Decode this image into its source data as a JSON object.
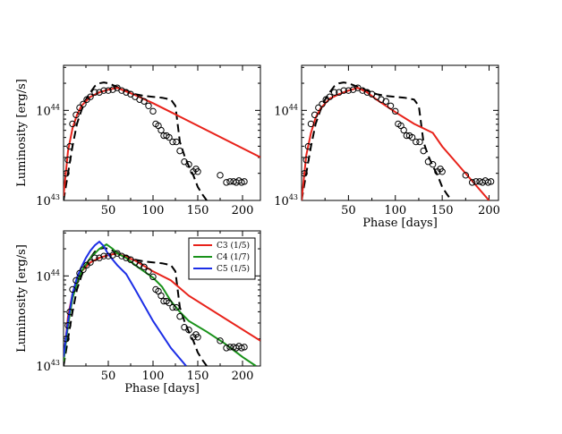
{
  "chart_data": [
    {
      "type": "line",
      "title": "",
      "xlabel": "",
      "ylabel": "Luminosity [erg/s]",
      "xlim": [
        0,
        220
      ],
      "ylim_log10": [
        43,
        44.5
      ],
      "yscale": "log",
      "xticks": [
        50,
        100,
        150,
        200
      ],
      "yticks": [
        {
          "base": "10",
          "exp": "43",
          "value": 43
        },
        {
          "base": "10",
          "exp": "44",
          "value": 44
        }
      ],
      "legend": [],
      "observed": {
        "name": "observed",
        "x": [
          3,
          5,
          7,
          10,
          14,
          18,
          22,
          26,
          30,
          35,
          40,
          45,
          50,
          55,
          60,
          65,
          70,
          75,
          80,
          85,
          90,
          95,
          100,
          103,
          106,
          109,
          112,
          115,
          118,
          122,
          126,
          130,
          135,
          140,
          145,
          148,
          150,
          175,
          182,
          186,
          190,
          193,
          196,
          199,
          202
        ],
        "y": [
          43.3,
          43.45,
          43.6,
          43.85,
          43.95,
          44.03,
          44.07,
          44.12,
          44.15,
          44.2,
          44.2,
          44.22,
          44.22,
          44.23,
          44.25,
          44.22,
          44.2,
          44.18,
          44.15,
          44.12,
          44.1,
          44.05,
          43.99,
          43.85,
          43.83,
          43.78,
          43.72,
          43.72,
          43.7,
          43.65,
          43.65,
          43.55,
          43.43,
          43.4,
          43.32,
          43.35,
          43.32,
          43.28,
          43.2,
          43.21,
          43.21,
          43.2,
          43.22,
          43.2,
          43.21
        ]
      },
      "series": [
        {
          "name": "model (dashed)",
          "color": "#000000",
          "x": [
            0,
            5,
            10,
            15,
            20,
            25,
            30,
            35,
            40,
            45,
            50,
            55,
            60,
            70,
            80,
            90,
            100,
            110,
            120,
            125,
            130,
            135,
            140,
            145,
            150,
            155,
            160
          ],
          "y": [
            43.0,
            43.3,
            43.6,
            43.85,
            44.0,
            44.12,
            44.2,
            44.27,
            44.3,
            44.31,
            44.3,
            44.28,
            44.26,
            44.22,
            44.18,
            44.16,
            44.15,
            44.14,
            44.12,
            44.05,
            43.65,
            43.5,
            43.38,
            43.28,
            43.15,
            43.07,
            43.0
          ]
        },
        {
          "name": "fit (solid)",
          "color": "#e8221a",
          "x": [
            0,
            5,
            10,
            15,
            20,
            30,
            40,
            50,
            60,
            70,
            80,
            100,
            120,
            130,
            220
          ],
          "y": [
            43.05,
            43.55,
            43.8,
            43.95,
            44.05,
            44.15,
            44.2,
            44.23,
            44.25,
            44.21,
            44.17,
            44.08,
            43.98,
            43.93,
            43.48
          ]
        }
      ]
    },
    {
      "type": "line",
      "title": "",
      "xlabel": "Phase [days]",
      "ylabel": "",
      "xlim": [
        0,
        210
      ],
      "ylim_log10": [
        43,
        44.5
      ],
      "yscale": "log",
      "xticks": [
        50,
        100,
        150,
        200
      ],
      "yticks": [
        {
          "base": "10",
          "exp": "43",
          "value": 43
        },
        {
          "base": "10",
          "exp": "44",
          "value": 44
        }
      ],
      "legend": [],
      "observed": {
        "name": "observed",
        "x": [
          3,
          5,
          7,
          10,
          14,
          18,
          22,
          26,
          30,
          35,
          40,
          45,
          50,
          55,
          60,
          65,
          70,
          75,
          80,
          85,
          90,
          95,
          100,
          103,
          106,
          109,
          112,
          115,
          118,
          122,
          126,
          130,
          135,
          140,
          145,
          148,
          150,
          175,
          182,
          186,
          190,
          193,
          196,
          199,
          202
        ],
        "y": [
          43.3,
          43.45,
          43.6,
          43.85,
          43.95,
          44.03,
          44.07,
          44.12,
          44.15,
          44.2,
          44.2,
          44.22,
          44.22,
          44.23,
          44.25,
          44.22,
          44.2,
          44.18,
          44.15,
          44.12,
          44.1,
          44.05,
          43.99,
          43.85,
          43.83,
          43.78,
          43.72,
          43.72,
          43.7,
          43.65,
          43.65,
          43.55,
          43.43,
          43.4,
          43.32,
          43.35,
          43.32,
          43.28,
          43.2,
          43.21,
          43.21,
          43.2,
          43.22,
          43.2,
          43.21
        ]
      },
      "series": [
        {
          "name": "model (dashed)",
          "color": "#000000",
          "x": [
            0,
            5,
            10,
            15,
            20,
            25,
            30,
            35,
            40,
            45,
            50,
            55,
            60,
            70,
            80,
            90,
            100,
            110,
            120,
            125,
            130,
            135,
            140,
            145,
            150,
            155,
            160
          ],
          "y": [
            43.0,
            43.3,
            43.6,
            43.85,
            44.0,
            44.12,
            44.2,
            44.27,
            44.3,
            44.31,
            44.3,
            44.28,
            44.26,
            44.22,
            44.18,
            44.16,
            44.15,
            44.14,
            44.12,
            44.05,
            43.65,
            43.5,
            43.38,
            43.28,
            43.15,
            43.07,
            43.0
          ]
        },
        {
          "name": "fit (solid)",
          "color": "#e8221a",
          "x": [
            0,
            5,
            10,
            15,
            20,
            30,
            40,
            50,
            60,
            70,
            80,
            100,
            120,
            140,
            150,
            200
          ],
          "y": [
            43.0,
            43.5,
            43.75,
            43.92,
            44.02,
            44.13,
            44.18,
            44.22,
            44.25,
            44.2,
            44.12,
            43.98,
            43.85,
            43.75,
            43.6,
            43.0
          ]
        }
      ]
    },
    {
      "type": "line",
      "title": "",
      "xlabel": "Phase [days]",
      "ylabel": "Luminosity [erg/s]",
      "xlim": [
        0,
        220
      ],
      "ylim_log10": [
        43,
        44.5
      ],
      "yscale": "log",
      "xticks": [
        50,
        100,
        150,
        200
      ],
      "yticks": [
        {
          "base": "10",
          "exp": "43",
          "value": 43
        },
        {
          "base": "10",
          "exp": "44",
          "value": 44
        }
      ],
      "legend": [
        {
          "label": "C3 (1/5)",
          "color": "#e8221a"
        },
        {
          "label": "C4 (1/7)",
          "color": "#19921a"
        },
        {
          "label": "C5 (1/5)",
          "color": "#1c2ee6"
        }
      ],
      "observed": {
        "name": "observed",
        "x": [
          3,
          5,
          7,
          10,
          14,
          18,
          22,
          26,
          30,
          35,
          40,
          45,
          50,
          55,
          60,
          65,
          70,
          75,
          80,
          85,
          90,
          95,
          100,
          103,
          106,
          109,
          112,
          115,
          118,
          122,
          126,
          130,
          135,
          140,
          145,
          148,
          150,
          175,
          182,
          186,
          190,
          193,
          196,
          199,
          202
        ],
        "y": [
          43.3,
          43.45,
          43.6,
          43.85,
          43.95,
          44.03,
          44.07,
          44.12,
          44.15,
          44.2,
          44.2,
          44.22,
          44.22,
          44.23,
          44.25,
          44.22,
          44.2,
          44.18,
          44.15,
          44.12,
          44.1,
          44.05,
          43.99,
          43.85,
          43.83,
          43.78,
          43.72,
          43.72,
          43.7,
          43.65,
          43.65,
          43.55,
          43.43,
          43.4,
          43.32,
          43.35,
          43.32,
          43.28,
          43.2,
          43.21,
          43.21,
          43.2,
          43.22,
          43.2,
          43.21
        ]
      },
      "series": [
        {
          "name": "model (dashed)",
          "color": "#000000",
          "x": [
            0,
            5,
            10,
            15,
            20,
            25,
            30,
            35,
            40,
            45,
            50,
            55,
            60,
            70,
            80,
            90,
            100,
            110,
            120,
            125,
            130,
            135,
            140,
            145,
            150,
            155,
            160
          ],
          "y": [
            43.0,
            43.3,
            43.6,
            43.85,
            44.0,
            44.12,
            44.2,
            44.27,
            44.3,
            44.31,
            44.3,
            44.28,
            44.26,
            44.22,
            44.18,
            44.16,
            44.15,
            44.14,
            44.12,
            44.05,
            43.65,
            43.5,
            43.38,
            43.28,
            43.15,
            43.07,
            43.0
          ]
        },
        {
          "name": "C3 (1/5)",
          "color": "#e8221a",
          "x": [
            0,
            5,
            10,
            15,
            20,
            30,
            40,
            50,
            60,
            70,
            80,
            100,
            120,
            140,
            220
          ],
          "y": [
            43.05,
            43.55,
            43.8,
            43.95,
            44.05,
            44.15,
            44.2,
            44.23,
            44.25,
            44.21,
            44.17,
            44.05,
            43.95,
            43.78,
            43.28
          ]
        },
        {
          "name": "C4 (1/7)",
          "color": "#19921a",
          "x": [
            0,
            5,
            10,
            15,
            20,
            30,
            40,
            48,
            55,
            60,
            70,
            80,
            90,
            100,
            110,
            120,
            130,
            140,
            160,
            180,
            200,
            215
          ],
          "y": [
            43.05,
            43.45,
            43.75,
            43.92,
            44.05,
            44.2,
            44.3,
            44.35,
            44.3,
            44.25,
            44.2,
            44.12,
            44.05,
            43.98,
            43.88,
            43.72,
            43.6,
            43.5,
            43.38,
            43.25,
            43.1,
            43.0
          ]
        },
        {
          "name": "C5 (1/5)",
          "color": "#1c2ee6",
          "x": [
            0,
            5,
            10,
            15,
            20,
            25,
            30,
            35,
            40,
            45,
            50,
            55,
            60,
            70,
            80,
            100,
            120,
            137
          ],
          "y": [
            43.1,
            43.5,
            43.8,
            43.98,
            44.1,
            44.2,
            44.28,
            44.34,
            44.38,
            44.33,
            44.24,
            44.18,
            44.12,
            44.02,
            43.85,
            43.5,
            43.2,
            43.0
          ]
        }
      ]
    }
  ]
}
